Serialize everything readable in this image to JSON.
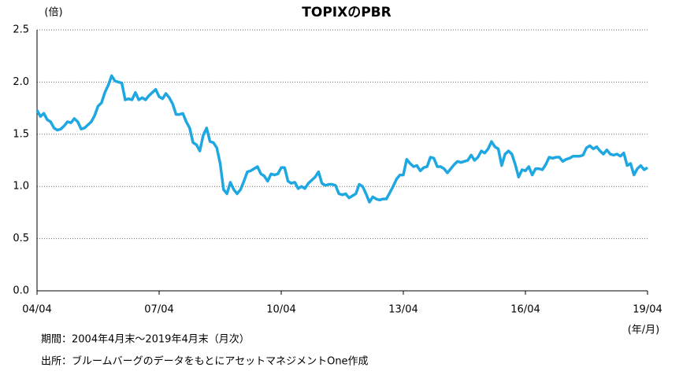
{
  "chart_data": {
    "type": "line",
    "title": "TOPIXのPBR",
    "y_unit": "(倍)",
    "x_unit": "(年/月)",
    "notes": [
      "期間：2004年4月末～2019年4月末（月次）",
      "出所：ブルームバーグのデータをもとにアセットマネジメントOne作成"
    ],
    "categories": [
      "04/04",
      null,
      null,
      null,
      null,
      null,
      null,
      null,
      null,
      null,
      null,
      null,
      null,
      null,
      null,
      null,
      null,
      null,
      null,
      null,
      null,
      null,
      null,
      null,
      null,
      null,
      null,
      null,
      null,
      null,
      null,
      null,
      null,
      null,
      null,
      null,
      "07/04",
      null,
      null,
      null,
      null,
      null,
      null,
      null,
      null,
      null,
      null,
      null,
      null,
      null,
      null,
      null,
      null,
      null,
      null,
      null,
      null,
      null,
      null,
      null,
      null,
      null,
      null,
      null,
      null,
      null,
      null,
      null,
      null,
      null,
      null,
      null,
      "10/04",
      null,
      null,
      null,
      null,
      null,
      null,
      null,
      null,
      null,
      null,
      null,
      null,
      null,
      null,
      null,
      null,
      null,
      null,
      null,
      null,
      null,
      null,
      null,
      null,
      null,
      null,
      null,
      null,
      null,
      null,
      null,
      null,
      null,
      null,
      null,
      "13/04",
      null,
      null,
      null,
      null,
      null,
      null,
      null,
      null,
      null,
      null,
      null,
      null,
      null,
      null,
      null,
      null,
      null,
      null,
      null,
      null,
      null,
      null,
      null,
      null,
      null,
      null,
      null,
      null,
      null,
      null,
      null,
      null,
      null,
      null,
      null,
      "16/04",
      null,
      null,
      null,
      null,
      null,
      null,
      null,
      null,
      null,
      null,
      null,
      null,
      null,
      null,
      null,
      null,
      null,
      null,
      null,
      null,
      null,
      null,
      null,
      null,
      null,
      null,
      null,
      null,
      null,
      null,
      null,
      null,
      null,
      null,
      null,
      "19/04"
    ],
    "values": [
      1.73,
      1.67,
      1.7,
      1.64,
      1.62,
      1.56,
      1.54,
      1.55,
      1.58,
      1.62,
      1.61,
      1.65,
      1.62,
      1.55,
      1.56,
      1.59,
      1.62,
      1.68,
      1.77,
      1.8,
      1.9,
      1.97,
      2.06,
      2.01,
      2.0,
      1.99,
      1.83,
      1.84,
      1.83,
      1.9,
      1.83,
      1.85,
      1.83,
      1.87,
      1.9,
      1.93,
      1.86,
      1.84,
      1.89,
      1.85,
      1.79,
      1.69,
      1.69,
      1.7,
      1.62,
      1.56,
      1.42,
      1.4,
      1.34,
      1.49,
      1.56,
      1.43,
      1.42,
      1.37,
      1.22,
      0.97,
      0.93,
      1.04,
      0.97,
      0.93,
      0.97,
      1.05,
      1.14,
      1.15,
      1.17,
      1.19,
      1.12,
      1.1,
      1.05,
      1.12,
      1.11,
      1.12,
      1.18,
      1.18,
      1.05,
      1.03,
      1.04,
      0.98,
      1.0,
      0.98,
      1.03,
      1.06,
      1.09,
      1.14,
      1.03,
      1.01,
      1.02,
      1.02,
      1.01,
      0.93,
      0.92,
      0.93,
      0.89,
      0.91,
      0.93,
      1.02,
      1.0,
      0.93,
      0.85,
      0.9,
      0.88,
      0.87,
      0.88,
      0.88,
      0.94,
      1.0,
      1.07,
      1.11,
      1.11,
      1.26,
      1.22,
      1.19,
      1.2,
      1.15,
      1.18,
      1.19,
      1.28,
      1.27,
      1.19,
      1.19,
      1.17,
      1.13,
      1.17,
      1.21,
      1.24,
      1.23,
      1.24,
      1.25,
      1.3,
      1.25,
      1.28,
      1.34,
      1.32,
      1.36,
      1.43,
      1.38,
      1.36,
      1.2,
      1.31,
      1.34,
      1.31,
      1.21,
      1.09,
      1.16,
      1.15,
      1.19,
      1.11,
      1.17,
      1.17,
      1.16,
      1.21,
      1.28,
      1.27,
      1.28,
      1.28,
      1.24,
      1.26,
      1.27,
      1.29,
      1.29,
      1.29,
      1.3,
      1.37,
      1.39,
      1.36,
      1.38,
      1.34,
      1.31,
      1.35,
      1.31,
      1.3,
      1.31,
      1.29,
      1.32,
      1.2,
      1.22,
      1.11,
      1.17,
      1.2,
      1.16,
      1.18
    ],
    "color": "#1ea7e1",
    "ylim": [
      0,
      2.5
    ],
    "yticks": [
      {
        "value": 0,
        "label": "0.0"
      },
      0.5,
      {
        "value": 1,
        "label": "1.0"
      },
      1.5,
      {
        "value": 2,
        "label": "2.0"
      },
      2.5
    ],
    "grid": true
  }
}
